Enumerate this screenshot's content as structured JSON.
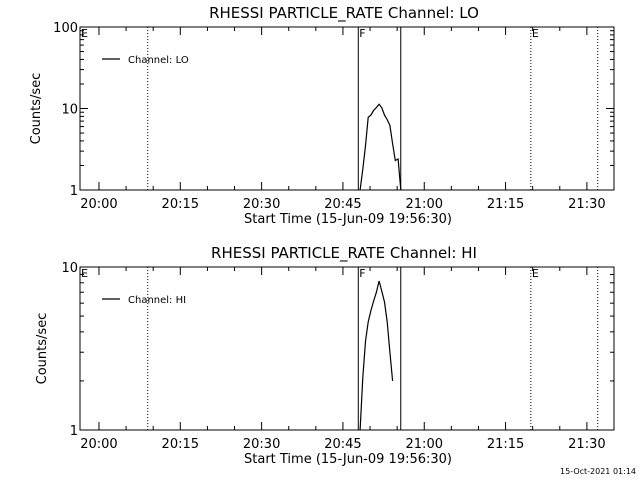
{
  "chart_data": [
    {
      "type": "line",
      "title": "RHESSI PARTICLE_RATE Channel: LO",
      "xlabel": "Start Time (15-Jun-09 19:56:30)",
      "ylabel": "Counts/sec",
      "y_scale": "log",
      "ylim": [
        1,
        100
      ],
      "y_ticks": [
        1,
        10,
        100
      ],
      "y_tick_labels": [
        "1",
        "10",
        "100"
      ],
      "xlim": [
        "19:56:30",
        "21:35:00"
      ],
      "x_ticks": [
        "20:00",
        "20:15",
        "20:30",
        "20:45",
        "21:00",
        "21:15",
        "21:30"
      ],
      "grid": false,
      "legend": {
        "placement": "top-left",
        "entries": [
          "Channel: LO"
        ]
      },
      "series": [
        {
          "name": "Channel: LO",
          "x": [
            "20:48:10",
            "20:48:40",
            "20:49:10",
            "20:49:40",
            "20:50:10",
            "20:50:40",
            "20:51:10",
            "20:51:40",
            "20:52:10",
            "20:52:40",
            "20:53:10",
            "20:53:40",
            "20:54:10",
            "20:54:40",
            "20:55:10",
            "20:55:40"
          ],
          "values": [
            1.0,
            1.8,
            3.5,
            7.8,
            8.3,
            9.5,
            10.3,
            11.3,
            10.2,
            8.3,
            7.3,
            6.2,
            3.7,
            2.3,
            2.4,
            1.0
          ]
        }
      ],
      "markers": [
        {
          "time": "20:09:00",
          "label": "",
          "style": "dotted"
        },
        {
          "time": "20:47:50",
          "label": "F",
          "style": "solid"
        },
        {
          "time": "20:55:40",
          "label": "",
          "style": "solid"
        },
        {
          "time": "21:19:40",
          "label": "E",
          "style": "dotted"
        },
        {
          "time": "21:32:00",
          "label": "",
          "style": "dotted"
        }
      ],
      "corner_labels": [
        "E"
      ]
    },
    {
      "type": "line",
      "title": "RHESSI PARTICLE_RATE Channel: HI",
      "xlabel": "Start Time (15-Jun-09 19:56:30)",
      "ylabel": "Counts/sec",
      "y_scale": "log",
      "ylim": [
        1,
        10
      ],
      "y_ticks": [
        1,
        10
      ],
      "y_tick_labels": [
        "1",
        "10"
      ],
      "xlim": [
        "19:56:30",
        "21:35:00"
      ],
      "x_ticks": [
        "20:00",
        "20:15",
        "20:30",
        "20:45",
        "21:00",
        "21:15",
        "21:30"
      ],
      "grid": false,
      "legend": {
        "placement": "top-left",
        "entries": [
          "Channel: HI"
        ]
      },
      "series": [
        {
          "name": "Channel: HI",
          "x": [
            "20:48:10",
            "20:48:40",
            "20:49:10",
            "20:49:40",
            "20:50:10",
            "20:50:40",
            "20:51:10",
            "20:51:40",
            "20:52:10",
            "20:52:40",
            "20:53:10",
            "20:53:40",
            "20:54:10"
          ],
          "values": [
            1.0,
            2.1,
            3.5,
            4.6,
            5.4,
            6.2,
            7.0,
            8.2,
            7.1,
            6.1,
            4.6,
            3.0,
            2.0
          ]
        }
      ],
      "markers": [
        {
          "time": "20:09:00",
          "label": "",
          "style": "dotted"
        },
        {
          "time": "20:47:50",
          "label": "F",
          "style": "solid"
        },
        {
          "time": "20:55:40",
          "label": "",
          "style": "solid"
        },
        {
          "time": "21:19:40",
          "label": "E",
          "style": "dotted"
        },
        {
          "time": "21:32:00",
          "label": "",
          "style": "dotted"
        }
      ],
      "corner_labels": [
        "E"
      ]
    }
  ],
  "stamp": "15-Oct-2021 01:14"
}
